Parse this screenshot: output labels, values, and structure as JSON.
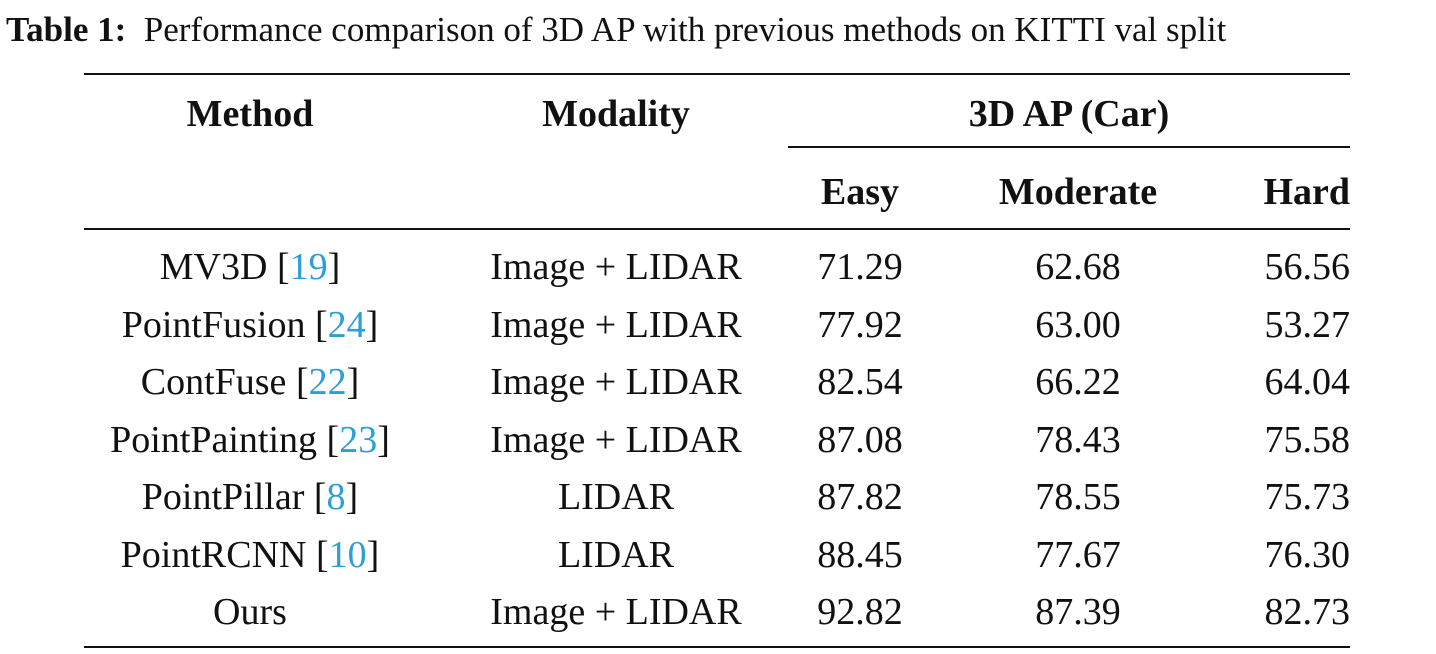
{
  "caption": {
    "label": "Table 1:",
    "text": "Performance comparison of 3D AP with previous methods on KITTI val split"
  },
  "headers": {
    "method": "Method",
    "modality": "Modality",
    "group": "3D AP (Car)",
    "easy": "Easy",
    "moderate": "Moderate",
    "hard": "Hard"
  },
  "rows": [
    {
      "method": "MV3D",
      "ref": "19",
      "modality": "Image + LIDAR",
      "easy": "71.29",
      "moderate": "62.68",
      "hard": "56.56"
    },
    {
      "method": "PointFusion",
      "ref": "24",
      "modality": "Image + LIDAR",
      "easy": "77.92",
      "moderate": "63.00",
      "hard": "53.27"
    },
    {
      "method": "ContFuse",
      "ref": "22",
      "modality": "Image + LIDAR",
      "easy": "82.54",
      "moderate": "66.22",
      "hard": "64.04"
    },
    {
      "method": "PointPainting",
      "ref": "23",
      "modality": "Image + LIDAR",
      "easy": "87.08",
      "moderate": "78.43",
      "hard": "75.58"
    },
    {
      "method": "PointPillar",
      "ref": "8",
      "modality": "LIDAR",
      "easy": "87.82",
      "moderate": "78.55",
      "hard": "75.73"
    },
    {
      "method": "PointRCNN",
      "ref": "10",
      "modality": "LIDAR",
      "easy": "88.45",
      "moderate": "77.67",
      "hard": "76.30"
    },
    {
      "method": "Ours",
      "ref": "",
      "modality": "Image + LIDAR",
      "easy": "92.82",
      "moderate": "87.39",
      "hard": "82.73"
    }
  ],
  "colors": {
    "text": "#111111",
    "citation": "#2d9fd8"
  }
}
